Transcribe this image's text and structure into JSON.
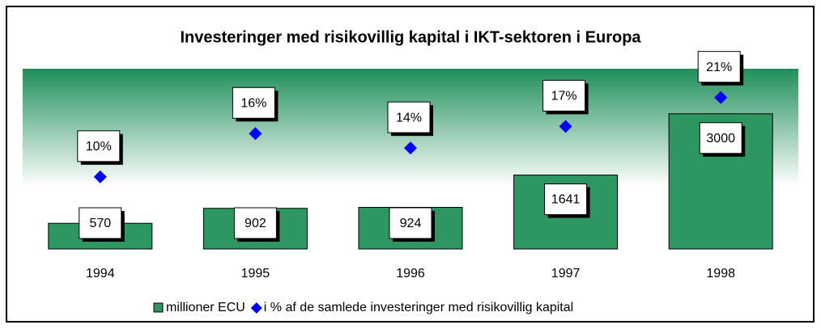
{
  "chart_data": {
    "type": "bar",
    "title": "Investeringer med risikovillig kapital i IKT-sektoren i Europa",
    "categories": [
      "1994",
      "1995",
      "1996",
      "1997",
      "1998"
    ],
    "series": [
      {
        "name": "millioner ECU",
        "color": "#2e9660",
        "values": [
          570,
          902,
          924,
          1641,
          3000
        ]
      },
      {
        "name": "i % af de samlede investeringer med risikovillig kapital",
        "type": "scatter",
        "axis": "y2",
        "color": "#0000ff",
        "values": [
          10,
          16,
          14,
          17,
          21
        ],
        "value_labels": [
          "10%",
          "16%",
          "14%",
          "17%",
          "21%"
        ]
      }
    ],
    "ylim": [
      0,
      4000
    ],
    "y2lim": [
      0,
      25
    ],
    "legend": "bottom"
  }
}
